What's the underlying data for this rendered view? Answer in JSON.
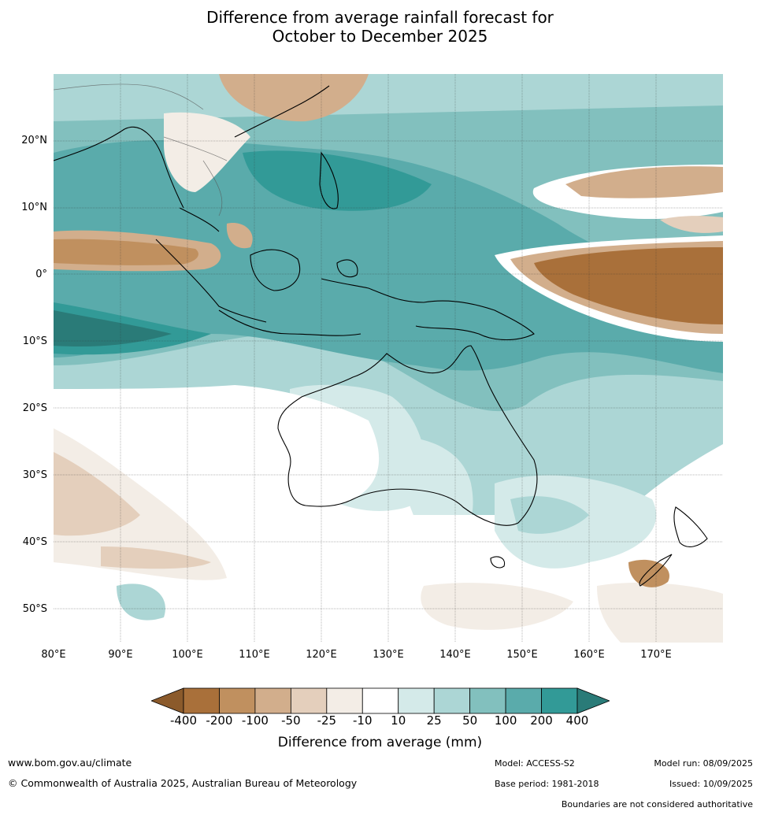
{
  "title_line1": "Difference from average rainfall forecast for",
  "title_line2": "October to December 2025",
  "lat_labels": [
    "20°N",
    "10°N",
    "0°",
    "10°S",
    "20°S",
    "30°S",
    "40°S",
    "50°S"
  ],
  "lon_labels": [
    "80°E",
    "90°E",
    "100°E",
    "110°E",
    "120°E",
    "130°E",
    "140°E",
    "150°E",
    "160°E",
    "170°E"
  ],
  "legend": {
    "title": "Difference from average (mm)",
    "ticks": [
      "-400",
      "-200",
      "-100",
      "-50",
      "-25",
      "-10",
      "10",
      "25",
      "50",
      "100",
      "200",
      "400"
    ],
    "colors": [
      "#8b5a2b",
      "#a9703a",
      "#c0905f",
      "#d2ae8c",
      "#e4cfbc",
      "#f3ede6",
      "#ffffff",
      "#d4eae9",
      "#acd6d5",
      "#82c0be",
      "#5aabab",
      "#329a97",
      "#2a7b78"
    ]
  },
  "footer": {
    "website": "www.bom.gov.au/climate",
    "copyright": "© Commonwealth of Australia 2025, Australian Bureau of Meteorology",
    "model": "Model: ACCESS-S2",
    "base_period": "Base period: 1981-2018",
    "model_run": "Model run: 08/09/2025",
    "issued": "Issued: 10/09/2025",
    "disclaimer": "Boundaries are not considered authoritative"
  }
}
